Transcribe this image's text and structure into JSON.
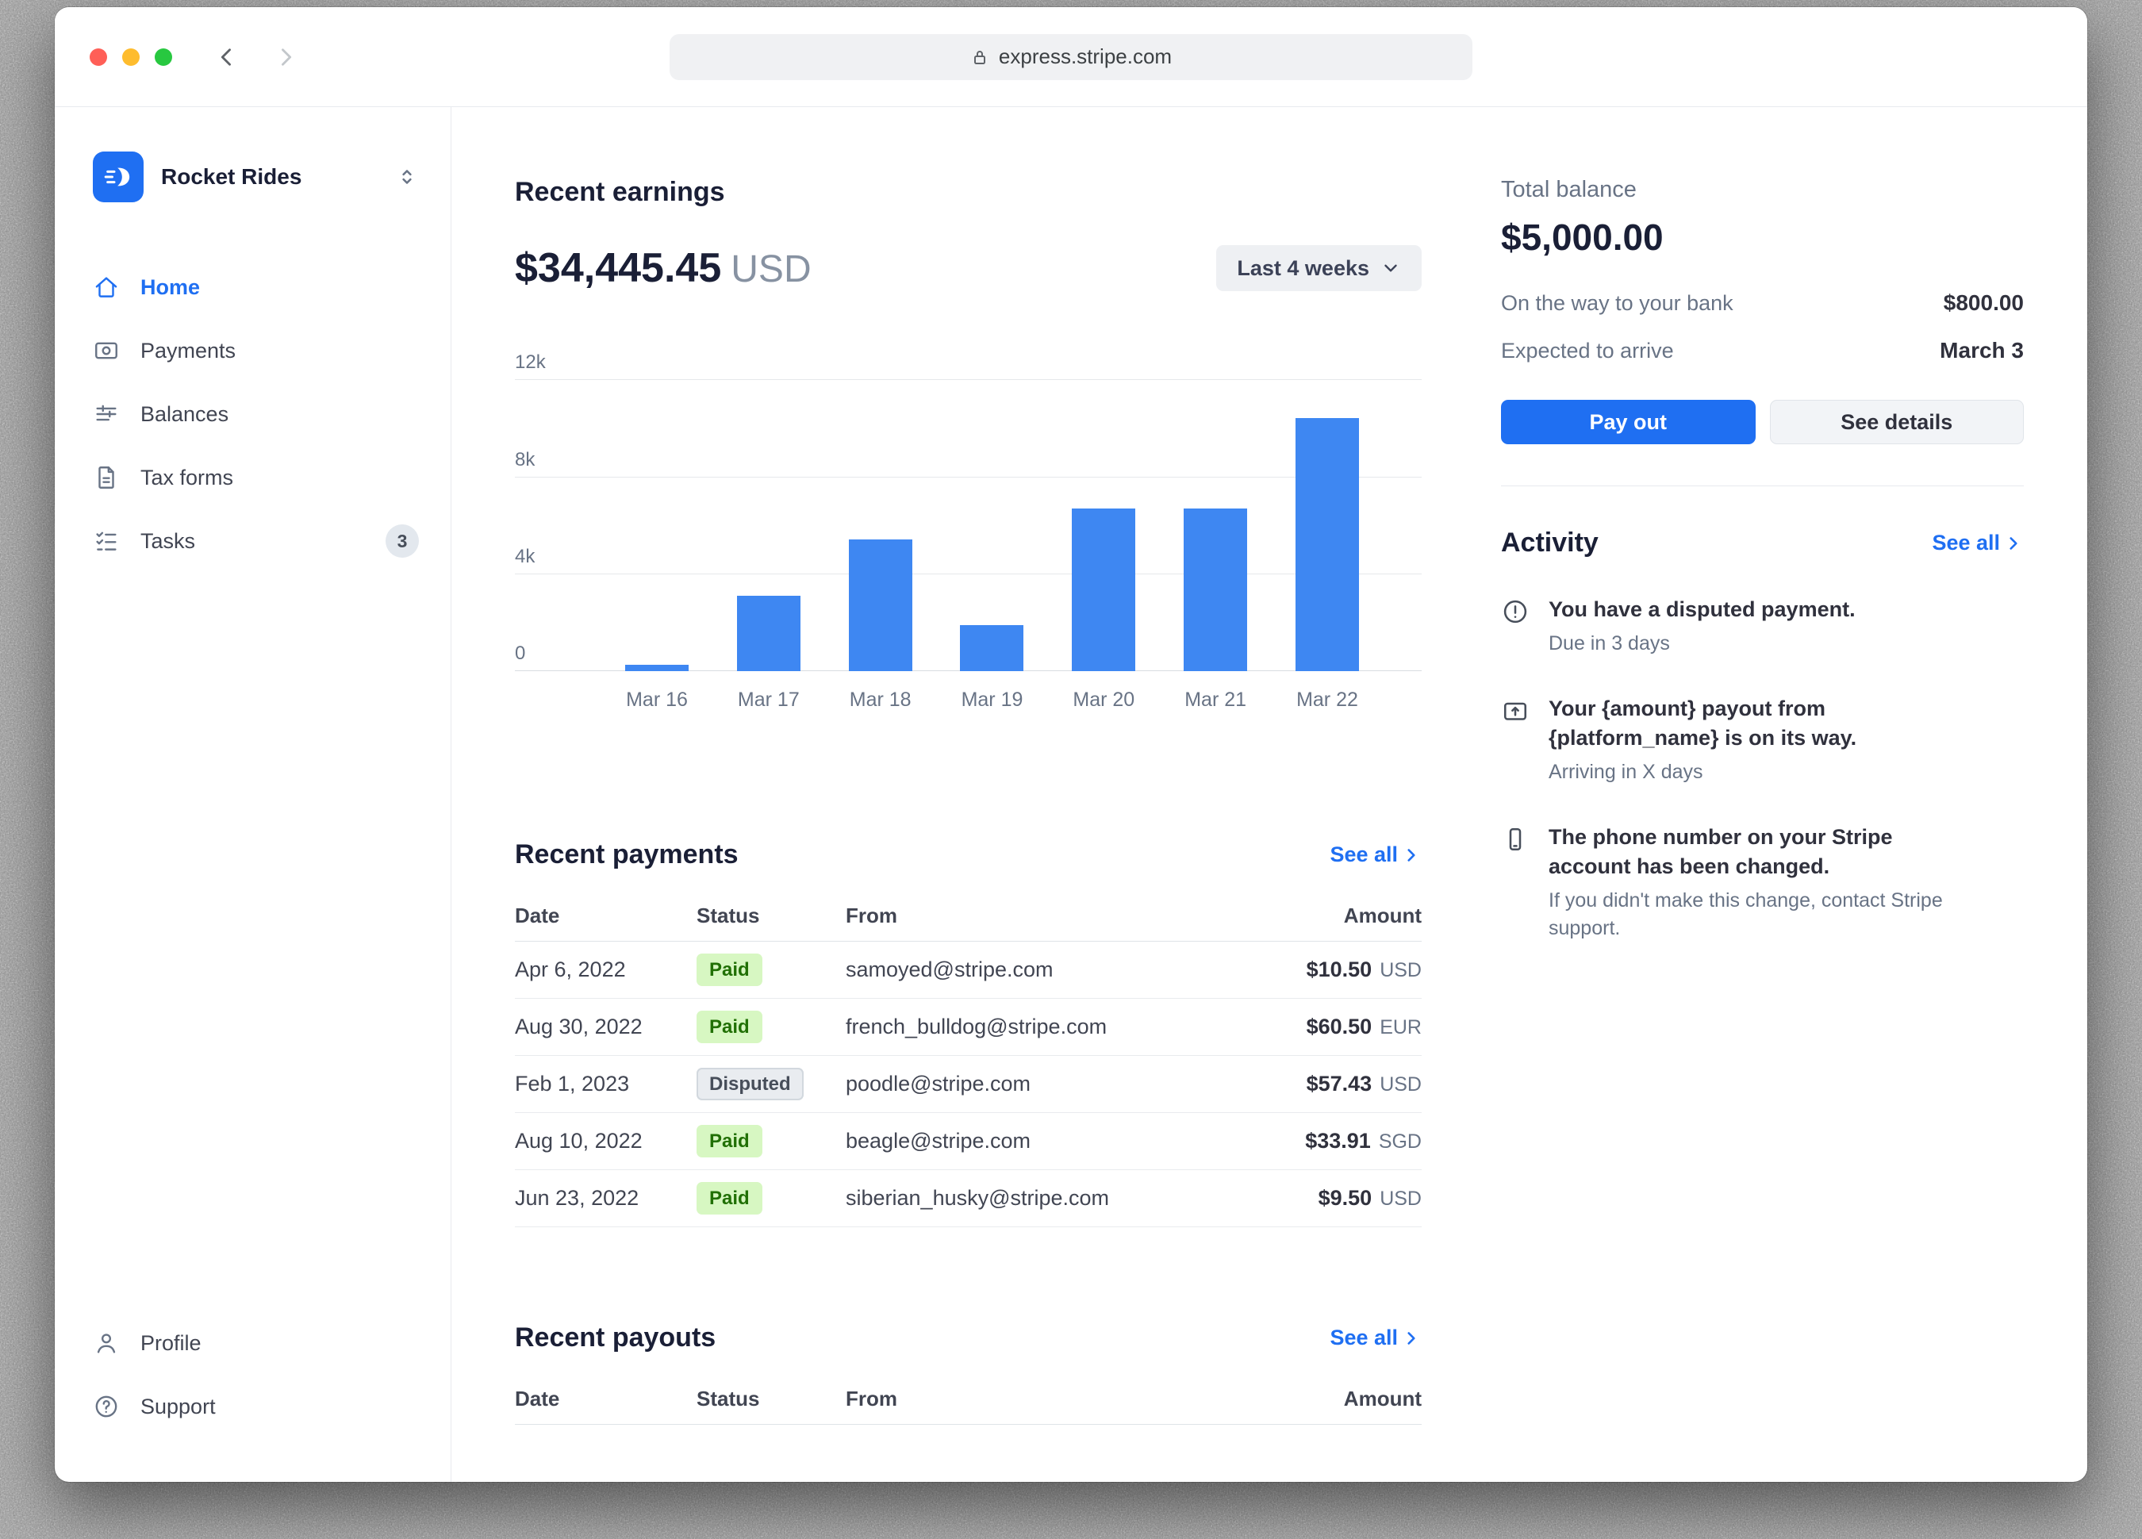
{
  "colors": {
    "accent": "#1f6ff2",
    "bar": "#3e87f2",
    "paid_bg": "#d7f7c2",
    "paid_text": "#217005",
    "disputed_bg": "#e9ecf0",
    "disputed_text": "#474e5a",
    "close": "#ff5f57",
    "minimize": "#febc2e",
    "zoom": "#28c840"
  },
  "browser": {
    "url": "express.stripe.com"
  },
  "sidebar": {
    "account_name": "Rocket Rides",
    "items": [
      {
        "label": "Home",
        "icon": "home-icon",
        "active": true
      },
      {
        "label": "Payments",
        "icon": "payments-icon"
      },
      {
        "label": "Balances",
        "icon": "balances-icon"
      },
      {
        "label": "Tax forms",
        "icon": "tax-forms-icon"
      },
      {
        "label": "Tasks",
        "icon": "tasks-icon",
        "badge": "3"
      }
    ],
    "footer_items": [
      {
        "label": "Profile",
        "icon": "profile-icon"
      },
      {
        "label": "Support",
        "icon": "support-icon"
      }
    ]
  },
  "earnings": {
    "title": "Recent earnings",
    "amount": "$34,445.45",
    "currency": "USD",
    "range_label": "Last 4 weeks"
  },
  "chart_data": {
    "type": "bar",
    "title": "Recent earnings",
    "categories": [
      "Mar 16",
      "Mar 17",
      "Mar 18",
      "Mar 19",
      "Mar 20",
      "Mar 21",
      "Mar 22"
    ],
    "values": [
      250,
      3100,
      5400,
      1900,
      6700,
      6700,
      10400
    ],
    "xlabel": "",
    "ylabel": "",
    "ylim": [
      0,
      12000
    ],
    "yticks": [
      "12k",
      "8k",
      "4k",
      "0"
    ],
    "grid": true,
    "legend": false,
    "bar_color": "#3e87f2"
  },
  "recent_payments": {
    "title": "Recent payments",
    "see_all": "See all",
    "columns": [
      "Date",
      "Status",
      "From",
      "Amount"
    ],
    "rows": [
      {
        "date": "Apr 6, 2022",
        "status": "Paid",
        "from": "samoyed@stripe.com",
        "amount": "$10.50",
        "currency": "USD"
      },
      {
        "date": "Aug 30, 2022",
        "status": "Paid",
        "from": "french_bulldog@stripe.com",
        "amount": "$60.50",
        "currency": "EUR"
      },
      {
        "date": "Feb 1, 2023",
        "status": "Disputed",
        "from": "poodle@stripe.com",
        "amount": "$57.43",
        "currency": "USD"
      },
      {
        "date": "Aug 10, 2022",
        "status": "Paid",
        "from": "beagle@stripe.com",
        "amount": "$33.91",
        "currency": "SGD"
      },
      {
        "date": "Jun 23, 2022",
        "status": "Paid",
        "from": "siberian_husky@stripe.com",
        "amount": "$9.50",
        "currency": "USD"
      }
    ]
  },
  "recent_payouts": {
    "title": "Recent payouts",
    "see_all": "See all",
    "columns": [
      "Date",
      "Status",
      "From",
      "Amount"
    ]
  },
  "balance": {
    "title": "Total balance",
    "amount": "$5,000.00",
    "rows": [
      {
        "label": "On the way to your bank",
        "value": "$800.00"
      },
      {
        "label": "Expected to arrive",
        "value": "March 3"
      }
    ],
    "pay_out_label": "Pay out",
    "see_details_label": "See details"
  },
  "activity": {
    "title": "Activity",
    "see_all": "See all",
    "items": [
      {
        "icon": "alert-circle-icon",
        "title": "You have a disputed payment.",
        "subtitle": "Due in 3 days"
      },
      {
        "icon": "payout-icon",
        "title": "Your {amount} payout from {platform_name} is on its way.",
        "subtitle": "Arriving in X days"
      },
      {
        "icon": "phone-icon",
        "title": "The phone number on your Stripe account has been changed.",
        "subtitle": "If you didn't make this change, contact Stripe support."
      }
    ]
  }
}
